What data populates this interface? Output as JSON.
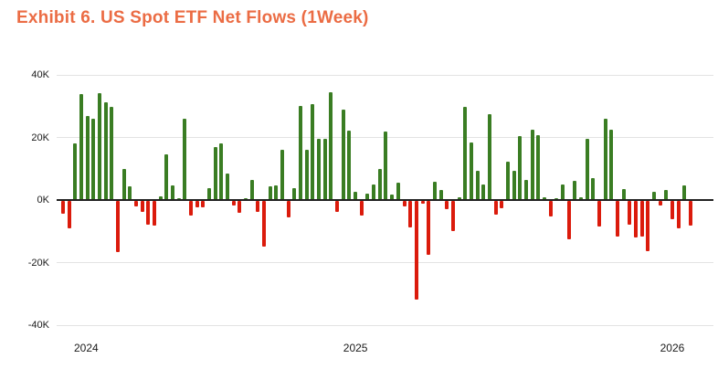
{
  "title": "Exhibit 6. US Spot ETF Net Flows (1Week)",
  "colors": {
    "title": "#EB6C44",
    "positive": "#3A7D23",
    "negative": "#DB1B0C",
    "gridline": "#E3E3E3",
    "axis_line": "#212121",
    "tick_text": "#1A1A1A",
    "background": "#FFFFFF"
  },
  "chart_data": {
    "type": "bar",
    "title": "Exhibit 6. US Spot ETF Net Flows (1Week)",
    "xlabel": "",
    "ylabel": "",
    "unit_suffix": "K",
    "ylim": [
      -40,
      40
    ],
    "grid": true,
    "legend": "none",
    "y_ticks": [
      {
        "label": "40K",
        "value": 40
      },
      {
        "label": "20K",
        "value": 20
      },
      {
        "label": "0K",
        "value": 0
      },
      {
        "label": "-20K",
        "value": -20
      },
      {
        "label": "-40K",
        "value": -40
      }
    ],
    "x_year_labels": [
      {
        "label": "2024",
        "bar_index": 3.8
      },
      {
        "label": "2025",
        "bar_index": 48
      },
      {
        "label": "2026",
        "bar_index": 100
      }
    ],
    "values": [
      -4,
      -8.8,
      18,
      33.8,
      26.8,
      26,
      34.2,
      31.3,
      29.8,
      -16.3,
      9.8,
      4.4,
      -1.7,
      -3.6,
      -7.5,
      -8,
      1.1,
      14.7,
      4.7,
      0.5,
      26,
      -4.6,
      -2.1,
      -1.9,
      3.7,
      16.9,
      18,
      8.4,
      -1.5,
      -3.9,
      0.5,
      6.4,
      -3.6,
      -14.6,
      4.4,
      4.7,
      16.1,
      -5.3,
      3.7,
      30,
      16.2,
      30.7,
      19.6,
      19.5,
      34.4,
      -3.5,
      28.9,
      22.2,
      2.6,
      -4.7,
      2.1,
      5,
      9.9,
      21.8,
      1.8,
      5.6,
      -1.8,
      -8.5,
      -31.5,
      -0.8,
      -17.2,
      5.7,
      3.3,
      -2.5,
      -9.7,
      1,
      29.8,
      18.5,
      9.3,
      4.9,
      27.5,
      -4.4,
      -2.2,
      12.2,
      9.3,
      20.5,
      6.5,
      22.6,
      20.7,
      0.8,
      -5.1,
      0.5,
      4.9,
      -12.2,
      6,
      0.8,
      19.7,
      7.1,
      -8.3,
      26.1,
      22.6,
      -11.5,
      3.4,
      -7.6,
      -11.8,
      -11.5,
      -16.1,
      2.6,
      -1.5,
      3.1,
      -5.7,
      -8.9,
      4.6,
      -7.9
    ]
  }
}
